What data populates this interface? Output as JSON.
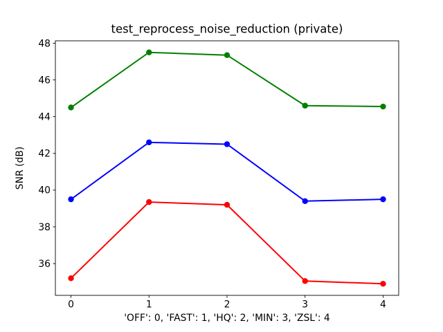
{
  "figure": {
    "background": "#ffffff",
    "spine_color": "#000000",
    "tick_color": "#000000"
  },
  "chart_data": {
    "type": "line",
    "title": "test_reprocess_noise_reduction (private)",
    "xlabel": "'OFF': 0, 'FAST': 1, 'HQ': 2, 'MIN': 3, 'ZSL': 4",
    "ylabel": "SNR (dB)",
    "x": [
      0,
      1,
      2,
      3,
      4
    ],
    "series": [
      {
        "name": "green",
        "color": "#008000",
        "values": [
          44.5,
          47.5,
          47.35,
          44.6,
          44.55
        ]
      },
      {
        "name": "blue",
        "color": "#0000ff",
        "values": [
          39.5,
          42.6,
          42.5,
          39.4,
          39.5
        ]
      },
      {
        "name": "red",
        "color": "#ff0000",
        "values": [
          35.2,
          39.35,
          39.2,
          35.05,
          34.9
        ]
      }
    ],
    "xticks": [
      0,
      1,
      2,
      3,
      4
    ],
    "yticks": [
      36,
      38,
      40,
      42,
      44,
      46,
      48
    ],
    "xlim": [
      -0.2,
      4.2
    ],
    "ylim": [
      34.27,
      48.13
    ],
    "grid": false,
    "legend": null,
    "marker": "circle",
    "marker_radius": 4.2,
    "line_width": 2
  }
}
